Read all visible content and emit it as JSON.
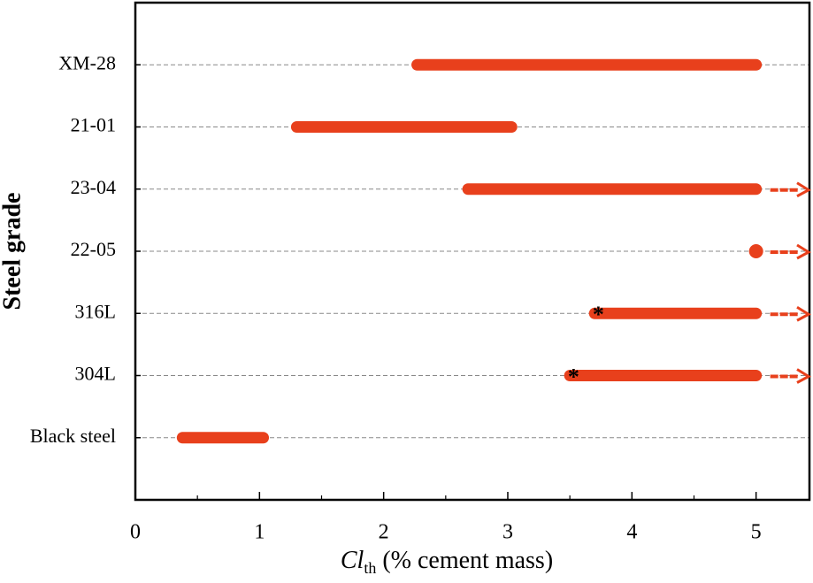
{
  "chart_data": {
    "type": "range",
    "ylabel": "Steel grade",
    "xlabel": {
      "main": "Cl",
      "sub": "th",
      "rest": " (% cement mass)"
    },
    "categories": [
      "XM-28",
      "21-01",
      "23-04",
      "22-05",
      "316L",
      "304L",
      "Black steel"
    ],
    "low": [
      2.27,
      1.3,
      2.68,
      5.0,
      3.7,
      3.5,
      0.38
    ],
    "high": [
      5.0,
      3.03,
      5.0,
      5.0,
      5.0,
      5.0,
      1.03
    ],
    "open_ended": [
      false,
      false,
      true,
      true,
      true,
      true,
      false
    ],
    "annotations": [
      {
        "category": 4,
        "x": 3.73,
        "text": "*"
      },
      {
        "category": 5,
        "x": 3.53,
        "text": "*"
      }
    ],
    "color": "#e8401c",
    "xlim": [
      0,
      5.43
    ],
    "xticks": [
      0,
      1,
      2,
      3,
      4,
      5
    ],
    "xminorticks": [
      0.5,
      1.5,
      2.5,
      3.5,
      4.5
    ],
    "grid": true
  }
}
